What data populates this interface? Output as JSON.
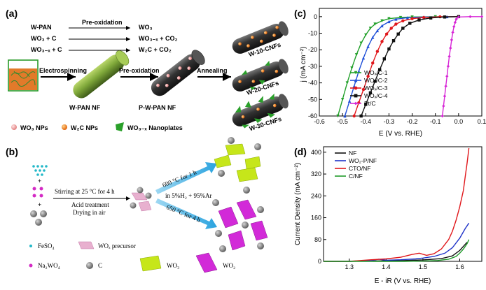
{
  "panel_a": {
    "label": "(a)",
    "reactions": [
      {
        "reactant": "W-PAN",
        "arrow": "Pre-oxidation",
        "product": "WO₃"
      },
      {
        "reactant": "WO₃  + C",
        "arrow": "",
        "product": "WO₃₋ₓ + CO₂"
      },
      {
        "reactant": "WO₃₋ₓ + C",
        "arrow": "",
        "product": "W₂C  + CO₂"
      }
    ],
    "step_electrospinning": "Electrospinning",
    "step_preoxidation": "Pre-oxidation",
    "step_annealing": "Annealing",
    "fiber_wpan": "W-PAN NF",
    "fiber_pwpan": "P-W-PAN NF",
    "product_1": "W-10-CNFs",
    "product_2": "W-20-CNFs",
    "product_3": "W-30-CNFs",
    "legend_wo3": "WO₃ NPs",
    "legend_w2c": "W₂C NPs",
    "legend_wo3x": "WO₃₋ₓ Nanoplates"
  },
  "panel_b": {
    "label": "(b)",
    "stir_line1": "Stirring at 25 °C for 4 h",
    "stir_line2": "Acid treatment",
    "stir_line3": "Drying in air",
    "upper_cond": "600 °C for 1 h",
    "gas_cond": "in 5%H₂ + 95%Ar",
    "lower_cond": "650 °C for 4 h",
    "legend_feso4": "FeSO₄",
    "legend_precursor": "WOₓ precursor",
    "legend_na2wo4": "Na₂WO₄",
    "legend_c": "C",
    "legend_wo3": "WO₃",
    "legend_wo2": "WO₂"
  },
  "panel_c": {
    "label": "(c)",
    "ylabel": "j (mA cm⁻²)",
    "xlabel": "E (V vs. RHE)",
    "legend": [
      "WOₓ/C-1",
      "WOₓ/C-2",
      "WOₓ/C-3",
      "WOₓ/C-4",
      "Pt/C"
    ]
  },
  "panel_d": {
    "label": "(d)",
    "ylabel": "Current Density (mA cm⁻²)",
    "xlabel": "E - iR (V vs. RHE)",
    "legend": [
      "NF",
      "WO₂-P/NF",
      "CTO/NF",
      "C/NF"
    ]
  },
  "chart_data": [
    {
      "type": "line",
      "panel": "c",
      "xlabel": "E (V vs. RHE)",
      "ylabel": "j (mA cm⁻²)",
      "xlim": [
        -0.6,
        0.1
      ],
      "ylim": [
        -60,
        5
      ],
      "xticks": [
        -0.6,
        -0.5,
        -0.4,
        -0.3,
        -0.2,
        -0.1,
        0.0,
        0.1
      ],
      "yticks": [
        0,
        -10,
        -20,
        -30,
        -40,
        -50,
        -60
      ],
      "grid": false,
      "legend_position": "bottom-left",
      "series": [
        {
          "name": "WOₓ/C-1",
          "color": "#22a02a",
          "marker": "triangle-down",
          "x": [
            -0.52,
            -0.5,
            -0.48,
            -0.46,
            -0.44,
            -0.42,
            -0.4,
            -0.38,
            -0.36,
            -0.33,
            -0.3,
            -0.25,
            -0.2,
            -0.1,
            0.0
          ],
          "y": [
            -60,
            -50,
            -40,
            -31,
            -23,
            -16,
            -11,
            -7,
            -4.5,
            -2.5,
            -1.2,
            -0.5,
            -0.2,
            -0.05,
            0
          ]
        },
        {
          "name": "WOₓ/C-2",
          "color": "#1f4fd8",
          "marker": "triangle-up",
          "x": [
            -0.49,
            -0.47,
            -0.45,
            -0.43,
            -0.41,
            -0.39,
            -0.37,
            -0.35,
            -0.33,
            -0.3,
            -0.27,
            -0.22,
            -0.15,
            -0.05,
            0.0
          ],
          "y": [
            -60,
            -51,
            -42,
            -33,
            -25,
            -18,
            -12.5,
            -8.5,
            -5.5,
            -3,
            -1.5,
            -0.6,
            -0.2,
            -0.05,
            0
          ]
        },
        {
          "name": "WOₓ/C-3",
          "color": "#e0171b",
          "marker": "circle",
          "x": [
            -0.45,
            -0.43,
            -0.41,
            -0.39,
            -0.37,
            -0.35,
            -0.33,
            -0.31,
            -0.29,
            -0.27,
            -0.24,
            -0.2,
            -0.15,
            -0.08,
            0.0
          ],
          "y": [
            -60,
            -52,
            -44,
            -36,
            -28,
            -21,
            -15,
            -10.5,
            -7,
            -4.5,
            -2.5,
            -1.2,
            -0.5,
            -0.1,
            0
          ]
        },
        {
          "name": "WOₓ/C-4",
          "color": "#111111",
          "marker": "square",
          "x": [
            -0.42,
            -0.4,
            -0.38,
            -0.36,
            -0.34,
            -0.32,
            -0.3,
            -0.28,
            -0.26,
            -0.24,
            -0.21,
            -0.17,
            -0.12,
            -0.06,
            0.0
          ],
          "y": [
            -60,
            -53,
            -46,
            -39,
            -32,
            -25.5,
            -19.5,
            -14.5,
            -10.5,
            -7,
            -4,
            -2,
            -0.8,
            -0.2,
            0
          ]
        },
        {
          "name": "Pt/C",
          "color": "#d726d6",
          "marker": "diamond",
          "x": [
            -0.07,
            -0.065,
            -0.06,
            -0.055,
            -0.05,
            -0.045,
            -0.04,
            -0.035,
            -0.03,
            -0.025,
            -0.02,
            -0.015,
            -0.01,
            0.0,
            0.05,
            0.1
          ],
          "y": [
            -60,
            -54,
            -48,
            -42,
            -36,
            -30,
            -24,
            -19,
            -14,
            -9.5,
            -6,
            -3.5,
            -1.5,
            -0.2,
            0,
            0
          ]
        }
      ]
    },
    {
      "type": "line",
      "panel": "d",
      "xlabel": "E - iR (V vs. RHE)",
      "ylabel": "Current Density (mA cm⁻²)",
      "xlim": [
        1.23,
        1.66
      ],
      "ylim": [
        0,
        420
      ],
      "xticks": [
        1.3,
        1.4,
        1.5,
        1.6
      ],
      "yticks": [
        0,
        80,
        160,
        240,
        320,
        400
      ],
      "grid": false,
      "legend_position": "top-left",
      "series": [
        {
          "name": "NF",
          "color": "#111111",
          "x": [
            1.23,
            1.3,
            1.35,
            1.4,
            1.45,
            1.5,
            1.55,
            1.58,
            1.6,
            1.62
          ],
          "y": [
            0,
            0,
            1,
            2,
            3,
            5,
            10,
            20,
            40,
            70
          ]
        },
        {
          "name": "WO₂-P/NF",
          "color": "#1f33c8",
          "x": [
            1.23,
            1.3,
            1.36,
            1.38,
            1.4,
            1.44,
            1.48,
            1.5,
            1.53,
            1.56,
            1.58,
            1.6,
            1.615,
            1.625
          ],
          "y": [
            0,
            0,
            3,
            8,
            4,
            6,
            9,
            12,
            18,
            30,
            50,
            85,
            120,
            140
          ]
        },
        {
          "name": "CTO/NF",
          "color": "#e0171b",
          "x": [
            1.23,
            1.3,
            1.33,
            1.36,
            1.4,
            1.44,
            1.47,
            1.49,
            1.51,
            1.53,
            1.55,
            1.57,
            1.58,
            1.59,
            1.6,
            1.61,
            1.615,
            1.62,
            1.625
          ],
          "y": [
            0,
            0,
            3,
            6,
            9,
            15,
            25,
            30,
            22,
            28,
            45,
            80,
            110,
            150,
            200,
            260,
            310,
            360,
            415
          ]
        },
        {
          "name": "C/NF",
          "color": "#1f9a2a",
          "x": [
            1.23,
            1.35,
            1.45,
            1.5,
            1.54,
            1.57,
            1.59,
            1.6,
            1.61,
            1.62,
            1.625
          ],
          "y": [
            0,
            0,
            0,
            1,
            3,
            8,
            18,
            30,
            45,
            65,
            80
          ]
        }
      ]
    }
  ]
}
